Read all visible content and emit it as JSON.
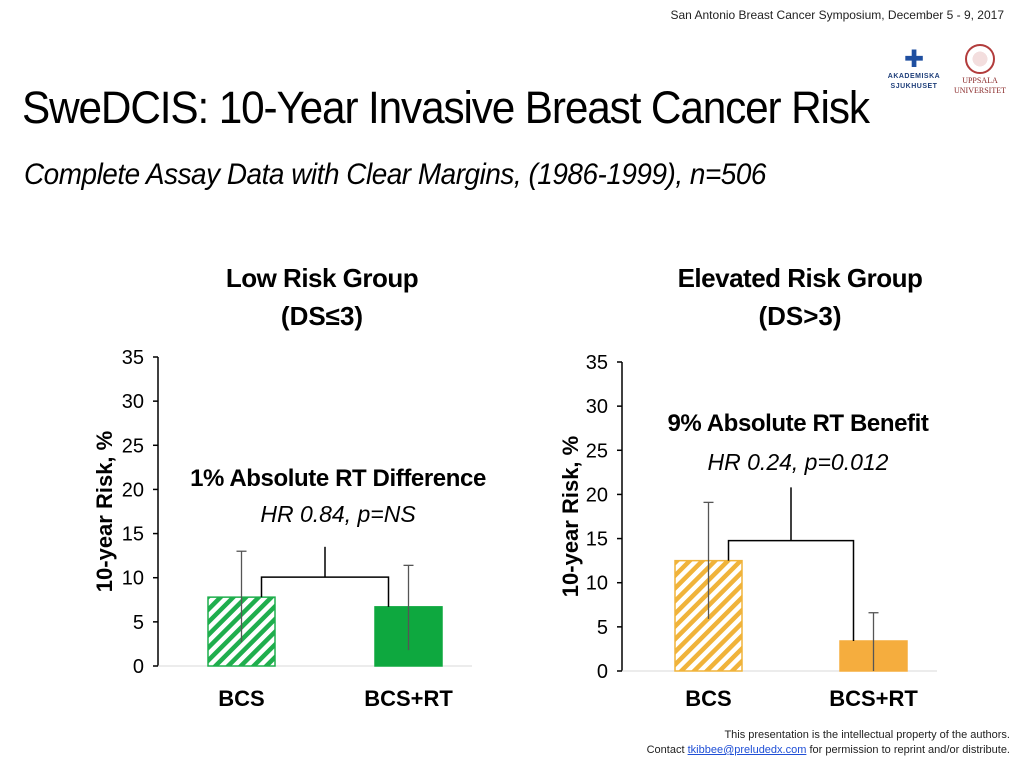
{
  "header": {
    "meta": "San Antonio Breast Cancer Symposium, December 5 - 9, 2017",
    "logo_left_text": [
      "AKADEMISKA",
      "SJUKHUSET"
    ],
    "logo_right_text": [
      "UPPSALA",
      "UNIVERSITET"
    ]
  },
  "slide": {
    "title": "SweDCIS: 10-Year Invasive Breast Cancer Risk",
    "subtitle": "Complete Assay Data with Clear Margins, (1986-1999), n=506"
  },
  "footer": {
    "line1": "This presentation is the intellectual property of the authors.",
    "contact_prefix": "Contact",
    "email": "tkibbee@preludedx.com",
    "contact_suffix": "for permission to reprint and/or distribute."
  },
  "chart_data": [
    {
      "type": "bar",
      "title_line1": "Low Risk Group",
      "title_line2": "(DS≤3)",
      "categories": [
        "BCS",
        "BCS+RT"
      ],
      "values": [
        7.8,
        6.7
      ],
      "error_bars": [
        [
          2.7,
          13.0
        ],
        [
          1.8,
          11.4
        ]
      ],
      "ylabel": "10-year Risk, %",
      "ylim": [
        0,
        35
      ],
      "yticks": [
        0,
        5,
        10,
        15,
        20,
        25,
        30,
        35
      ],
      "bar_colors": [
        "#1fae4d",
        "#0ea83f"
      ],
      "bar_patterns": [
        "hatched",
        "solid"
      ],
      "bracket_top": 13.5,
      "annotation_main": "1% Absolute RT Difference",
      "annotation_sub": "HR 0.84, p=NS"
    },
    {
      "type": "bar",
      "title_line1": "Elevated Risk Group",
      "title_line2": "(DS>3)",
      "categories": [
        "BCS",
        "BCS+RT"
      ],
      "values": [
        12.5,
        3.4
      ],
      "error_bars": [
        [
          5.9,
          19.1
        ],
        [
          0.0,
          6.6
        ]
      ],
      "ylabel": "10-year Risk, %",
      "ylim": [
        0,
        35
      ],
      "yticks": [
        0,
        5,
        10,
        15,
        20,
        25,
        30,
        35
      ],
      "bar_colors": [
        "#f0b33a",
        "#f5ad3e"
      ],
      "bar_patterns": [
        "hatched",
        "solid"
      ],
      "bracket_top": 20.8,
      "annotation_main": "9% Absolute RT Benefit",
      "annotation_sub": "HR 0.24, p=0.012"
    }
  ]
}
